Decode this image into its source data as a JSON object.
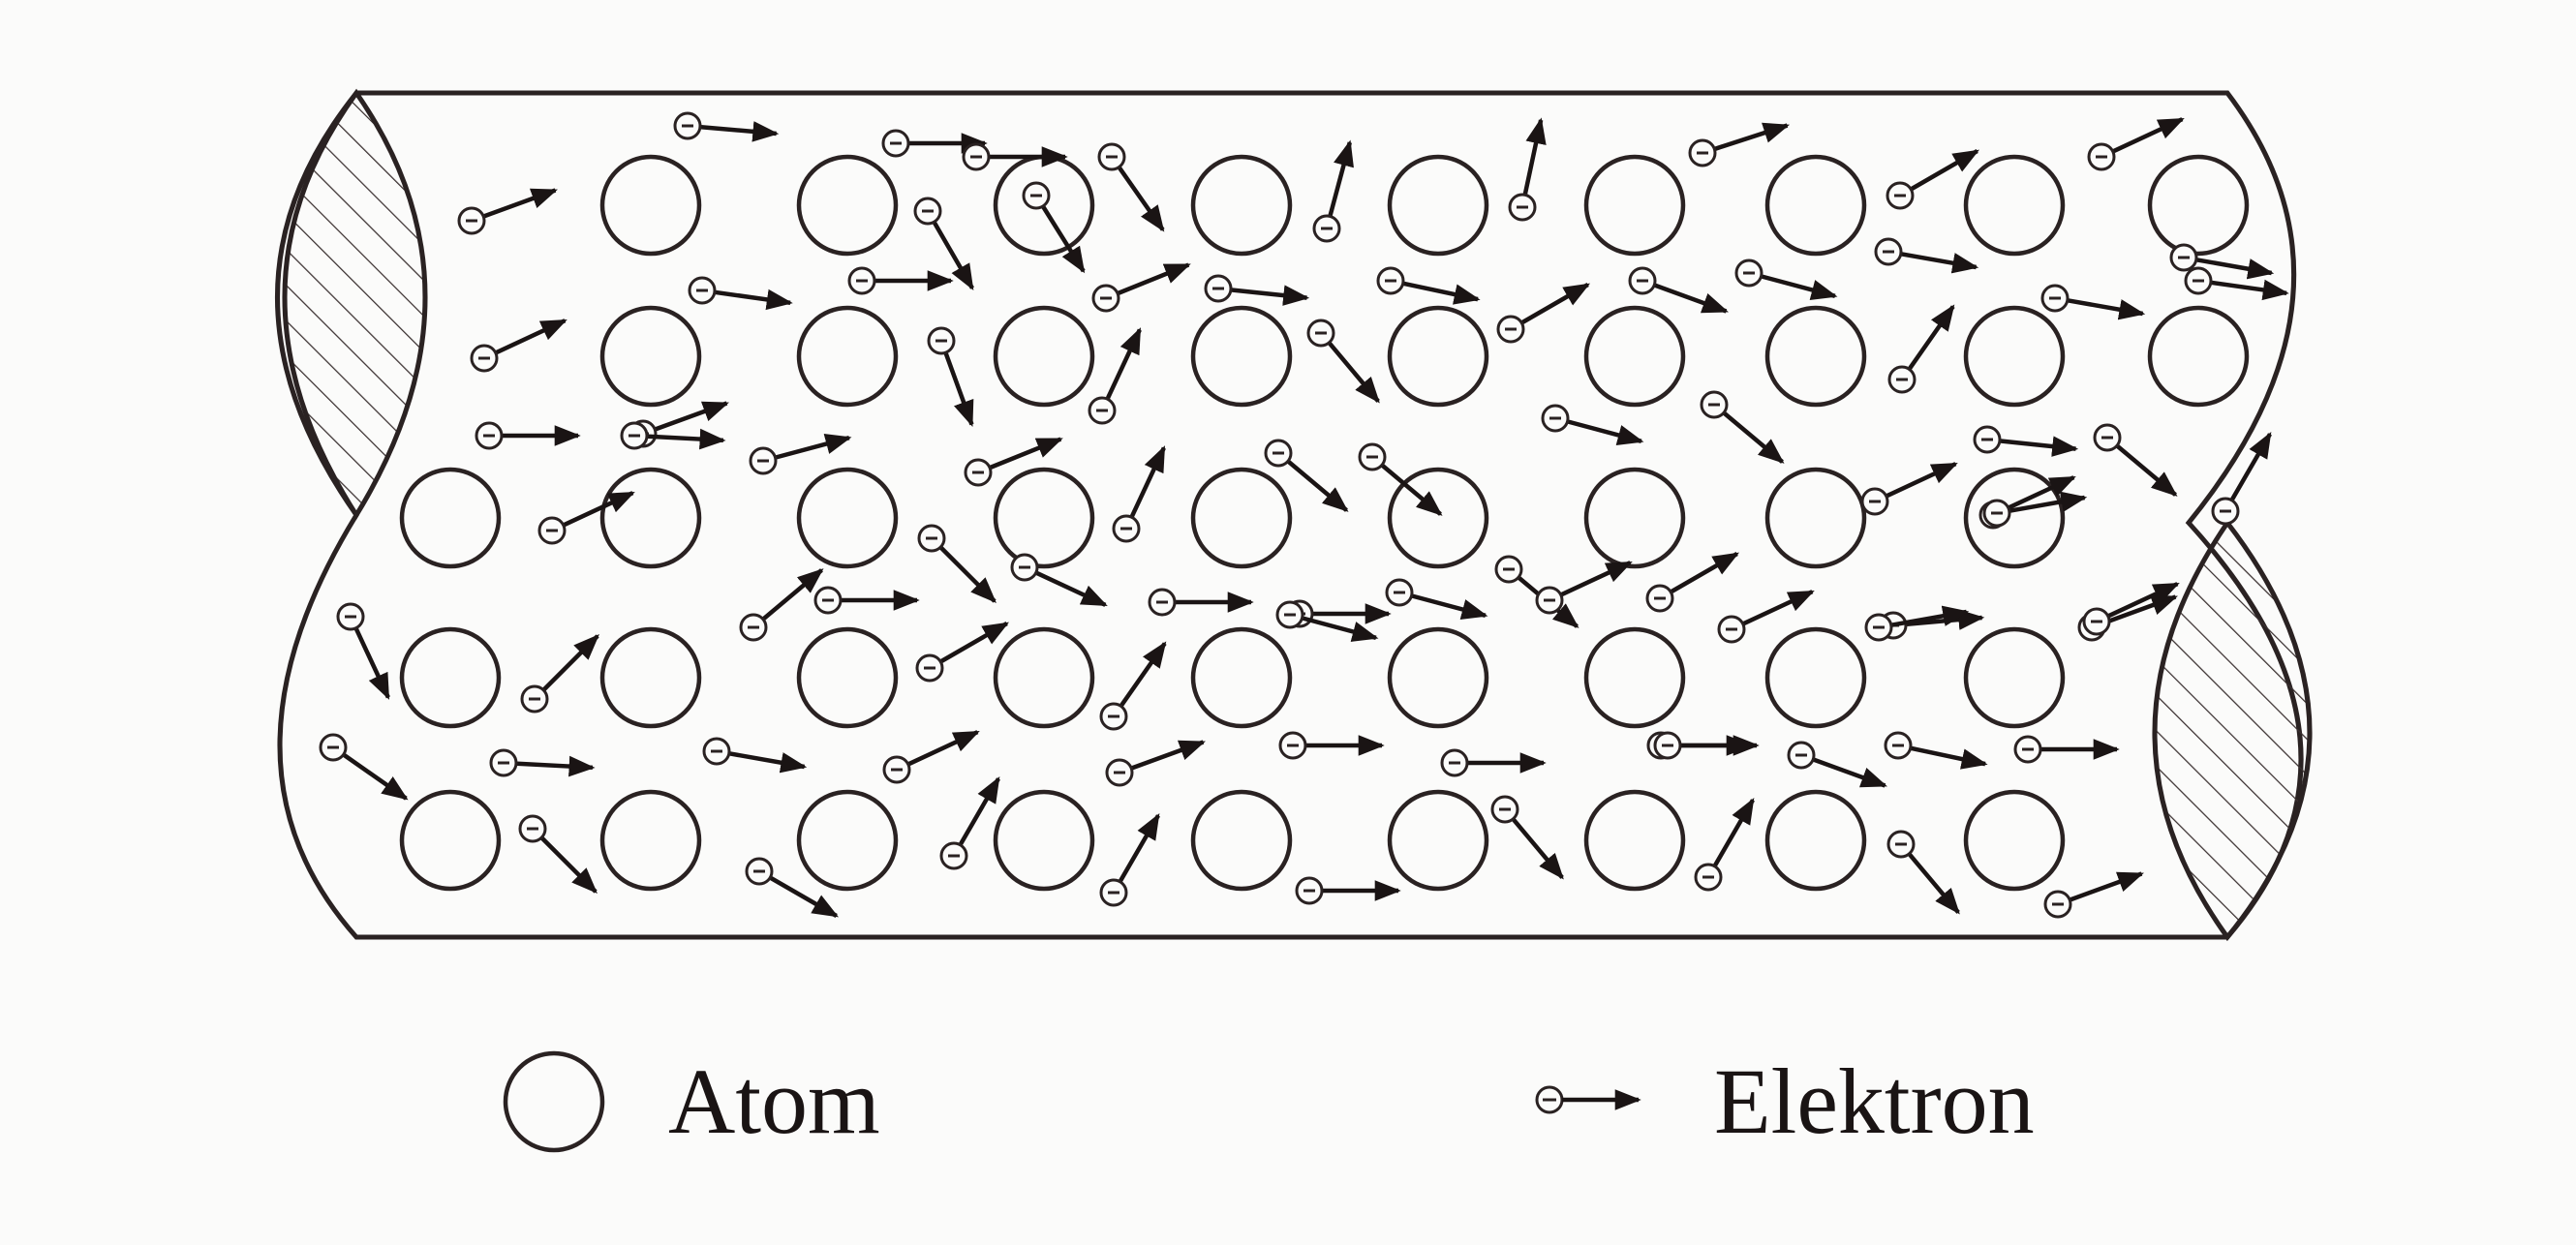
{
  "legend": {
    "atom_label": "Atom",
    "electron_label": "Elektron"
  },
  "colors": {
    "ink": "#2a2222",
    "background": "#fbfbfa"
  }
}
